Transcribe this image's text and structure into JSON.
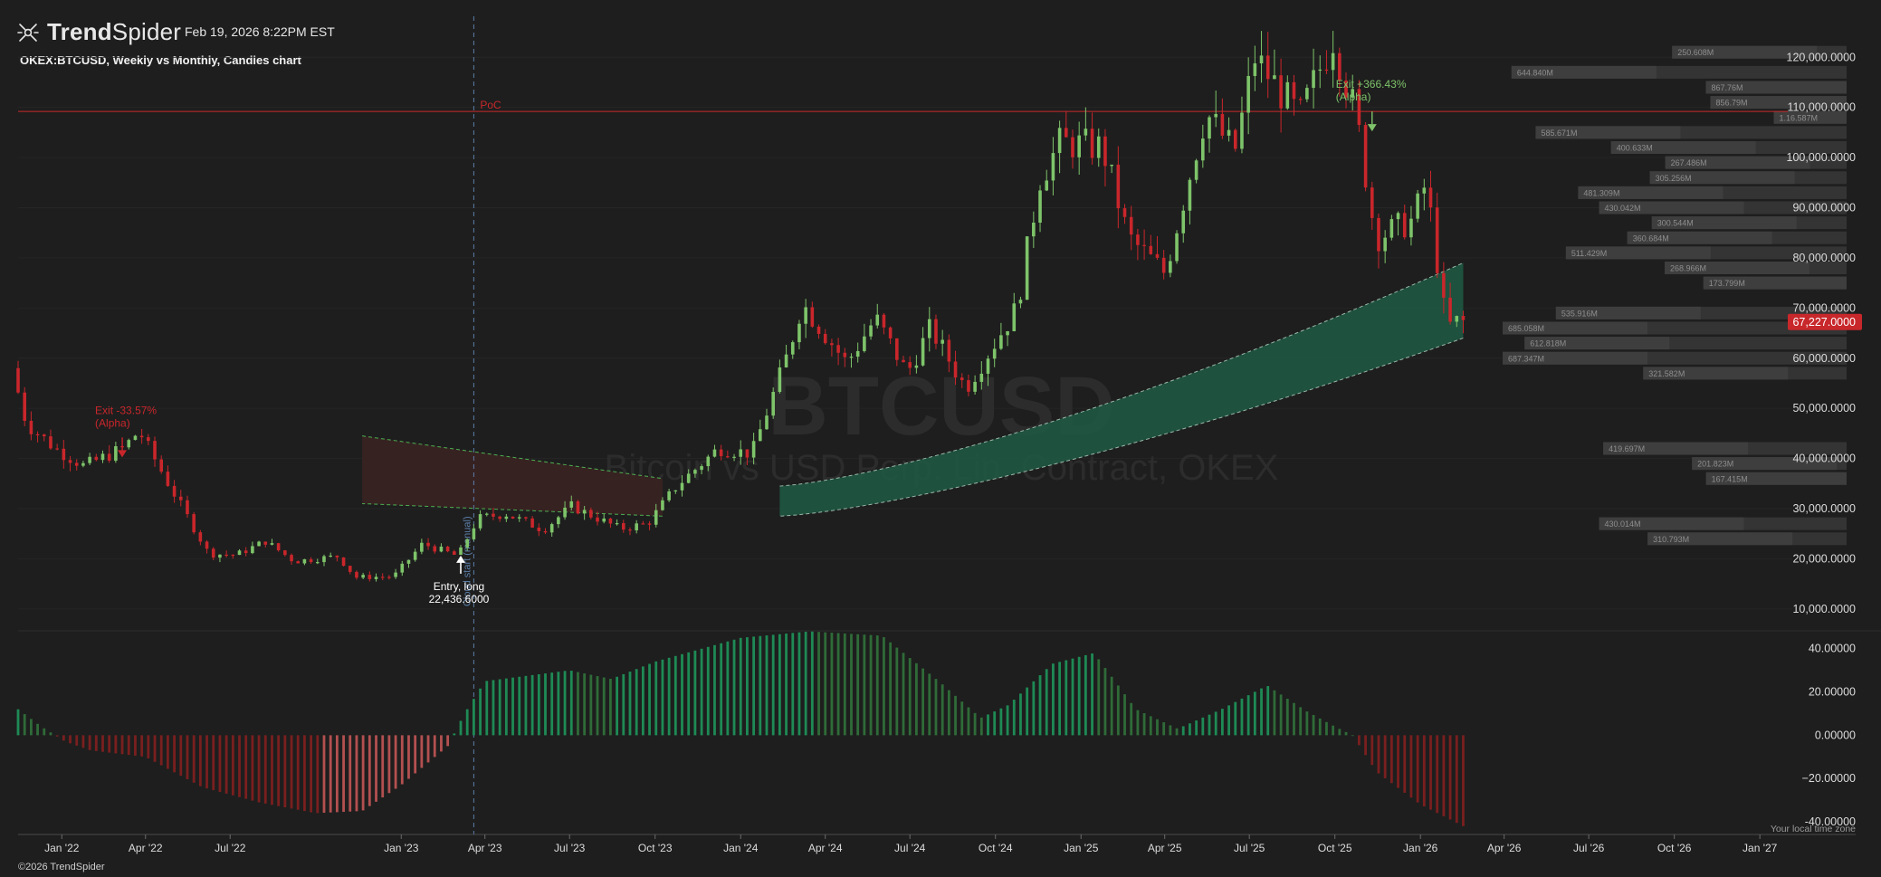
{
  "header": {
    "brand_a": "Trend",
    "brand_b": "Spider",
    "timestamp": "Feb 19, 2026 8:22PM EST",
    "title": "OKEX:BTCUSD, Weekly vs Monthly, Candles chart",
    "copyright": "©2026 TrendSpider",
    "timezone_note": "Your local time zone"
  },
  "watermark": {
    "symbol": "BTCUSD",
    "description": "Bitcoin vs USD Perp. Lin. Contract, OKEX"
  },
  "colors": {
    "background": "#1e1e1e",
    "up": "#7ec46a",
    "down": "#c9262b",
    "poc": "#c8282b",
    "hist_up": "#1e8a55",
    "hist_up_dim": "#2f6b38",
    "hist_down": "#7a1f1f",
    "hist_down_light": "#b35050",
    "cloud": "#1f5a44",
    "grid": "#262626",
    "text": "#dcdcdc",
    "manual_line": "#5b7ea8"
  },
  "chart_data": [
    {
      "type": "candlestick",
      "series_name": "OKEX:BTCUSD",
      "x_labels": [
        "Jan '22",
        "Apr '22",
        "Jul '22",
        "Jan '23",
        "Apr '23",
        "Jul '23",
        "Oct '23",
        "Jan '24",
        "Apr '24",
        "Jul '24",
        "Oct '24",
        "Jan '25",
        "Apr '25",
        "Jul '25",
        "Oct '25",
        "Jan '26",
        "Apr '26",
        "Jul '26",
        "Oct '26",
        "Jan '27"
      ],
      "x_label_dates": [
        "2022-01-01",
        "2022-04-01",
        "2022-07-01",
        "2023-01-01",
        "2023-04-01",
        "2023-07-01",
        "2023-10-01",
        "2024-01-01",
        "2024-04-01",
        "2024-07-01",
        "2024-10-01",
        "2025-01-01",
        "2025-04-01",
        "2025-07-01",
        "2025-10-01",
        "2026-01-01",
        "2026-04-01",
        "2026-07-01",
        "2026-10-01",
        "2027-01-01"
      ],
      "x_range": [
        "2021-11-15",
        "2027-01-31"
      ],
      "y_ticks": [
        "10,000.0000",
        "20,000.0000",
        "30,000.0000",
        "40,000.0000",
        "50,000.0000",
        "60,000.0000",
        "70,000.0000",
        "80,000.0000",
        "90,000.0000",
        "100,000.0000",
        "110,000.0000",
        "120,000.0000"
      ],
      "ylim": [
        6000,
        126000
      ],
      "last_price": 67227,
      "last_price_label": "67,227.0000",
      "poc": {
        "label": "PoC",
        "price": 109200
      },
      "manual_start": {
        "date": "2023-03-20",
        "label": "Cloud start (manual)"
      },
      "entry_signal": {
        "date": "2023-03-06",
        "price": 22436.6,
        "label": "Entry, long",
        "price_label": "22,436.6000"
      },
      "exit_signals": [
        {
          "date": "2022-03-07",
          "price": 39500,
          "label": "Exit -33.57%",
          "sub": "(Alpha)",
          "color": "#c9262b"
        },
        {
          "date": "2025-11-10",
          "price": 104500,
          "label": "Exit +366.43%",
          "sub": "(Alpha)",
          "color": "#7ec46a"
        }
      ],
      "anchor_points": [
        [
          "2021-11-15",
          58000
        ],
        [
          "2021-12-01",
          47000
        ],
        [
          "2022-01-01",
          42000
        ],
        [
          "2022-02-01",
          38500
        ],
        [
          "2022-03-15",
          42000
        ],
        [
          "2022-04-01",
          45500
        ],
        [
          "2022-05-01",
          35500
        ],
        [
          "2022-06-15",
          21000
        ],
        [
          "2022-07-15",
          20800
        ],
        [
          "2022-08-15",
          23500
        ],
        [
          "2022-09-15",
          19500
        ],
        [
          "2022-11-01",
          20500
        ],
        [
          "2022-11-20",
          16300
        ],
        [
          "2022-12-31",
          16500
        ],
        [
          "2023-01-31",
          23000
        ],
        [
          "2023-03-10",
          20500
        ],
        [
          "2023-03-31",
          28000
        ],
        [
          "2023-04-30",
          29000
        ],
        [
          "2023-06-10",
          25800
        ],
        [
          "2023-07-10",
          30500
        ],
        [
          "2023-08-31",
          26000
        ],
        [
          "2023-09-30",
          27000
        ],
        [
          "2023-10-31",
          34500
        ],
        [
          "2023-12-15",
          42000
        ],
        [
          "2024-01-20",
          41000
        ],
        [
          "2024-02-28",
          61000
        ],
        [
          "2024-03-14",
          71000
        ],
        [
          "2024-05-01",
          59000
        ],
        [
          "2024-06-01",
          68000
        ],
        [
          "2024-07-05",
          57000
        ],
        [
          "2024-07-30",
          66000
        ],
        [
          "2024-09-06",
          54000
        ],
        [
          "2024-10-31",
          70000
        ],
        [
          "2024-11-25",
          96000
        ],
        [
          "2024-12-17",
          103000
        ],
        [
          "2025-01-31",
          102000
        ],
        [
          "2025-02-28",
          84000
        ],
        [
          "2025-04-08",
          77000
        ],
        [
          "2025-05-22",
          109000
        ],
        [
          "2025-06-22",
          101000
        ],
        [
          "2025-07-14",
          120000
        ],
        [
          "2025-08-31",
          108000
        ],
        [
          "2025-10-06",
          124000
        ],
        [
          "2025-10-31",
          108000
        ],
        [
          "2025-11-21",
          84000
        ],
        [
          "2025-12-31",
          87500
        ],
        [
          "2026-01-14",
          95000
        ],
        [
          "2026-02-05",
          66000
        ],
        [
          "2026-02-16",
          67227
        ]
      ],
      "clouds": [
        {
          "from": "2022-11-20",
          "to": "2023-10-09",
          "upper_start": 44500,
          "upper_end": 36000,
          "lower_start": 31000,
          "lower_end": 28500,
          "color": "#3a2222"
        },
        {
          "from": "2024-02-12",
          "to": "2026-02-16",
          "upper_start": 34500,
          "upper_end": 79000,
          "lower_start": 28500,
          "lower_end": 64000,
          "color": "#1f5a44"
        }
      ]
    },
    {
      "type": "volume-profile",
      "labels": [
        {
          "price": 121000,
          "value": "250.608M"
        },
        {
          "price": 117000,
          "value": "644.840M"
        },
        {
          "price": 114000,
          "value": "867.76M"
        },
        {
          "price": 111000,
          "value": "856.79M"
        },
        {
          "price": 108000,
          "value": "1.16.587M"
        },
        {
          "price": 105000,
          "value": "585.671M"
        },
        {
          "price": 102000,
          "value": "400.633M"
        },
        {
          "price": 99000,
          "value": "267.486M"
        },
        {
          "price": 96000,
          "value": "305.256M"
        },
        {
          "price": 93000,
          "value": "481.309M"
        },
        {
          "price": 90000,
          "value": "430.042M"
        },
        {
          "price": 87000,
          "value": "300.544M"
        },
        {
          "price": 84000,
          "value": "360.684M"
        },
        {
          "price": 81000,
          "value": "511.429M"
        },
        {
          "price": 78000,
          "value": "268.966M"
        },
        {
          "price": 75000,
          "value": "173.799M"
        },
        {
          "price": 69000,
          "value": "535.916M"
        },
        {
          "price": 66000,
          "value": "685.058M"
        },
        {
          "price": 63000,
          "value": "612.818M"
        },
        {
          "price": 60000,
          "value": "687.347M"
        },
        {
          "price": 57000,
          "value": "321.582M"
        },
        {
          "price": 42000,
          "value": "419.697M"
        },
        {
          "price": 39000,
          "value": "201.823M"
        },
        {
          "price": 36000,
          "value": "167.415M"
        },
        {
          "price": 27000,
          "value": "430.014M"
        },
        {
          "price": 24000,
          "value": "310.793M"
        }
      ]
    },
    {
      "type": "histogram",
      "y_ticks": [
        "-40.00000",
        "−20.00000",
        "0.00000",
        "20.00000",
        "40.00000"
      ],
      "ylim": [
        -45,
        47
      ],
      "anchor_points": [
        [
          "2021-11-15",
          12
        ],
        [
          "2021-12-10",
          4
        ],
        [
          "2022-01-05",
          -3
        ],
        [
          "2022-02-01",
          -7
        ],
        [
          "2022-04-01",
          -10
        ],
        [
          "2022-06-01",
          -24
        ],
        [
          "2022-08-01",
          -31
        ],
        [
          "2022-10-01",
          -36
        ],
        [
          "2022-11-20",
          -35
        ],
        [
          "2023-01-01",
          -23
        ],
        [
          "2023-02-20",
          -5
        ],
        [
          "2023-03-10",
          10
        ],
        [
          "2023-04-01",
          25
        ],
        [
          "2023-07-01",
          30
        ],
        [
          "2023-08-15",
          26
        ],
        [
          "2023-10-01",
          34
        ],
        [
          "2024-01-01",
          45
        ],
        [
          "2024-03-15",
          48
        ],
        [
          "2024-06-01",
          46
        ],
        [
          "2024-08-01",
          25
        ],
        [
          "2024-09-15",
          8
        ],
        [
          "2024-10-15",
          14
        ],
        [
          "2024-12-01",
          33
        ],
        [
          "2025-01-15",
          38
        ],
        [
          "2025-03-01",
          12
        ],
        [
          "2025-04-15",
          3
        ],
        [
          "2025-06-01",
          12
        ],
        [
          "2025-07-20",
          23
        ],
        [
          "2025-09-01",
          11
        ],
        [
          "2025-10-01",
          4
        ],
        [
          "2025-10-20",
          0
        ],
        [
          "2025-11-15",
          -17
        ],
        [
          "2026-01-01",
          -32
        ],
        [
          "2026-02-16",
          -42
        ]
      ]
    }
  ]
}
